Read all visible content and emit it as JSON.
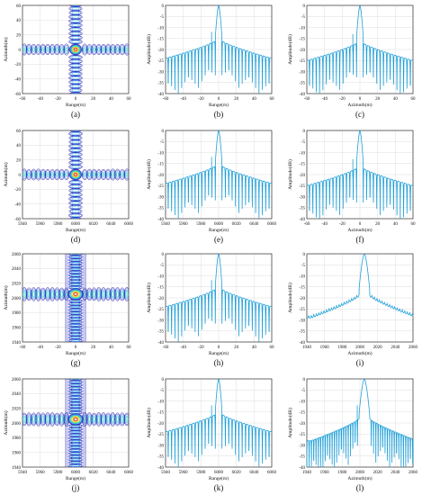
{
  "chart_data": [
    {
      "panel": "(a)",
      "type": "heatmap",
      "subtype": "point-target contour",
      "xlabel": "Range(m)",
      "ylabel": "Azimuth(m)",
      "xlim": [
        -60,
        60
      ],
      "ylim": [
        -60,
        60
      ],
      "xticks": [
        "-60",
        "-40",
        "-20",
        "0",
        "20",
        "40",
        "60"
      ],
      "yticks": [
        "60",
        "40",
        "20",
        "0",
        "-20",
        "-40",
        "-60"
      ],
      "peak": [
        0,
        0
      ],
      "cross_halfwidth": [
        3,
        3
      ],
      "grid": true
    },
    {
      "panel": "(b)",
      "type": "line",
      "subtype": "range profile",
      "xlabel": "Range(m)",
      "ylabel": "Amplitude(dB)",
      "xlim": [
        -60,
        60
      ],
      "ylim": [
        -40,
        0
      ],
      "xticks": [
        "-60",
        "-40",
        "-20",
        "0",
        "20",
        "40",
        "60"
      ],
      "yticks": [
        "0",
        "-5",
        "-10",
        "-15",
        "-20",
        "-25",
        "-30",
        "-35",
        "-40"
      ],
      "center": 0,
      "mainlobe_halfwidth": 3.5,
      "first_sidelobe_db": -13,
      "shoulder_db": -16,
      "edge_db": -24,
      "spike_db": -12,
      "grid": true
    },
    {
      "panel": "(c)",
      "type": "line",
      "subtype": "azimuth profile",
      "xlabel": "Azimuth(m)",
      "ylabel": "Amplitude(dB)",
      "xlim": [
        -60,
        60
      ],
      "ylim": [
        -40,
        0
      ],
      "xticks": [
        "-60",
        "-40",
        "-20",
        "0",
        "20",
        "40",
        "60"
      ],
      "yticks": [
        "0",
        "-5",
        "-10",
        "-15",
        "-20",
        "-25",
        "-30",
        "-35",
        "-40"
      ],
      "center": 0,
      "mainlobe_halfwidth": 3.5,
      "first_sidelobe_db": -13,
      "shoulder_db": -17,
      "edge_db": -25,
      "spike_db": -13,
      "grid": true
    },
    {
      "panel": "(d)",
      "type": "heatmap",
      "subtype": "point-target contour",
      "xlabel": "Range(m)",
      "ylabel": "Azimuth(m)",
      "xlim": [
        5940,
        6060
      ],
      "ylim": [
        -60,
        60
      ],
      "xticks": [
        "5940",
        "5960",
        "5980",
        "6000",
        "6020",
        "6040",
        "6060"
      ],
      "yticks": [
        "60",
        "40",
        "20",
        "0",
        "-20",
        "-40",
        "-60"
      ],
      "peak": [
        6000,
        0
      ],
      "cross_halfwidth": [
        3,
        3
      ],
      "grid": true
    },
    {
      "panel": "(e)",
      "type": "line",
      "subtype": "range profile",
      "xlabel": "Range(m)",
      "ylabel": "Amplitude(dB)",
      "xlim": [
        5940,
        6060
      ],
      "ylim": [
        -40,
        0
      ],
      "xticks": [
        "5940",
        "5960",
        "5980",
        "6000",
        "6020",
        "6040",
        "6060"
      ],
      "yticks": [
        "0",
        "-5",
        "-10",
        "-15",
        "-20",
        "-25",
        "-30",
        "-35",
        "-40"
      ],
      "center": 6000,
      "mainlobe_halfwidth": 3.5,
      "first_sidelobe_db": -13,
      "shoulder_db": -16,
      "edge_db": -24,
      "spike_db": -12,
      "grid": true
    },
    {
      "panel": "(f)",
      "type": "line",
      "subtype": "azimuth profile",
      "xlabel": "Azimuth(m)",
      "ylabel": "Amplitude(dB)",
      "xlim": [
        -60,
        60
      ],
      "ylim": [
        -40,
        0
      ],
      "xticks": [
        "-60",
        "-40",
        "-20",
        "0",
        "20",
        "40",
        "60"
      ],
      "yticks": [
        "0",
        "-5",
        "-10",
        "-15",
        "-20",
        "-25",
        "-30",
        "-35",
        "-40"
      ],
      "center": 0,
      "mainlobe_halfwidth": 3.5,
      "first_sidelobe_db": -13,
      "shoulder_db": -17,
      "edge_db": -25,
      "spike_db": -13,
      "grid": true
    },
    {
      "panel": "(g)",
      "type": "heatmap",
      "subtype": "point-target contour",
      "xlabel": "Range(m)",
      "ylabel": "Azimuth(m)",
      "xlim": [
        -60,
        60
      ],
      "ylim": [
        1940,
        2060
      ],
      "xticks": [
        "-60",
        "-40",
        "-20",
        "0",
        "20",
        "40",
        "60"
      ],
      "yticks": [
        "2060",
        "2040",
        "2020",
        "2000",
        "1980",
        "1960",
        "1940"
      ],
      "peak": [
        0,
        2005
      ],
      "cross_halfwidth": [
        3,
        6
      ],
      "grid": true
    },
    {
      "panel": "(h)",
      "type": "line",
      "subtype": "range profile",
      "xlabel": "Range(m)",
      "ylabel": "Amplitude(dB)",
      "xlim": [
        -60,
        60
      ],
      "ylim": [
        -40,
        0
      ],
      "xticks": [
        "-60",
        "-40",
        "-20",
        "0",
        "20",
        "40",
        "60"
      ],
      "yticks": [
        "0",
        "-5",
        "-10",
        "-15",
        "-20",
        "-25",
        "-30",
        "-35",
        "-40"
      ],
      "center": 0,
      "mainlobe_halfwidth": 3.5,
      "first_sidelobe_db": -13,
      "shoulder_db": -16,
      "edge_db": -24,
      "spike_db": -12,
      "grid": true
    },
    {
      "panel": "(i)",
      "type": "line",
      "subtype": "azimuth profile",
      "xlabel": "Azimuth(m)",
      "ylabel": "Amplitude(dB)",
      "xlim": [
        1940,
        2060
      ],
      "ylim": [
        -40,
        0
      ],
      "xticks": [
        "1940",
        "1960",
        "1980",
        "2000",
        "2020",
        "2040",
        "2060"
      ],
      "yticks": [
        "0",
        "-5",
        "-10",
        "-15",
        "-20",
        "-25",
        "-30",
        "-35",
        "-40"
      ],
      "center": 2005,
      "mainlobe_halfwidth": 6,
      "first_sidelobe_db": -16,
      "shoulder_db": -18,
      "edge_db": -28,
      "spike_db": null,
      "grid": true
    },
    {
      "panel": "(j)",
      "type": "heatmap",
      "subtype": "point-target contour",
      "xlabel": "Range(m)",
      "ylabel": "Azimuth(m)",
      "xlim": [
        5940,
        6060
      ],
      "ylim": [
        1940,
        2060
      ],
      "xticks": [
        "5940",
        "5960",
        "5980",
        "6000",
        "6020",
        "6040",
        "6060"
      ],
      "yticks": [
        "2060",
        "2040",
        "2020",
        "2000",
        "1980",
        "1960",
        "1940"
      ],
      "peak": [
        6000,
        2005
      ],
      "cross_halfwidth": [
        3,
        6
      ],
      "grid": true
    },
    {
      "panel": "(k)",
      "type": "line",
      "subtype": "range profile",
      "xlabel": "Range(m)",
      "ylabel": "Amplitude(dB)",
      "xlim": [
        5940,
        6060
      ],
      "ylim": [
        -40,
        0
      ],
      "xticks": [
        "5940",
        "5960",
        "5980",
        "6000",
        "6020",
        "6040",
        "6060"
      ],
      "yticks": [
        "0",
        "-5",
        "-10",
        "-15",
        "-20",
        "-25",
        "-30",
        "-35",
        "-40"
      ],
      "center": 6000,
      "mainlobe_halfwidth": 3.5,
      "first_sidelobe_db": -13,
      "shoulder_db": -16,
      "edge_db": -24,
      "spike_db": -12,
      "grid": true
    },
    {
      "panel": "(l)",
      "type": "line",
      "subtype": "azimuth profile",
      "xlabel": "Azimuth(m)",
      "ylabel": "Amplitude(dB)",
      "xlim": [
        1940,
        2060
      ],
      "ylim": [
        -40,
        0
      ],
      "xticks": [
        "1940",
        "1960",
        "1980",
        "2000",
        "2020",
        "2040",
        "2060"
      ],
      "yticks": [
        "0",
        "-5",
        "-10",
        "-15",
        "-20",
        "-25",
        "-30",
        "-35",
        "-40"
      ],
      "center": 2005,
      "mainlobe_halfwidth": 6,
      "first_sidelobe_db": -16,
      "shoulder_db": -18,
      "edge_db": -28,
      "spike_db": -12,
      "grid": true
    }
  ],
  "colors": {
    "line": "#1e9fd8",
    "grid": "#dcdcdc",
    "axis": "#333333",
    "contour_levels": [
      "#2a1f9e",
      "#2f4fe0",
      "#1aa6e8",
      "#29d1a8",
      "#a6e04a",
      "#f0d62a",
      "#f07e2a",
      "#e02a2a"
    ]
  }
}
